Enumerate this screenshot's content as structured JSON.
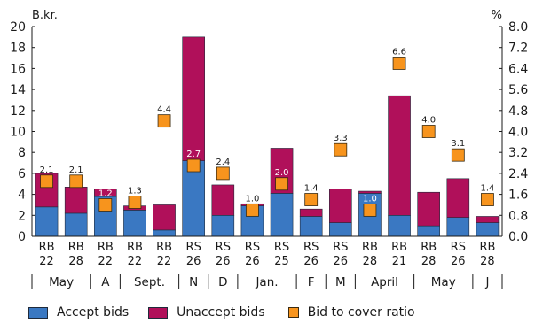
{
  "chart_data": {
    "type": "bar",
    "left_unit": "B.kr.",
    "right_unit": "%",
    "yticks_left": [
      "0",
      "2",
      "4",
      "6",
      "8",
      "10",
      "12",
      "14",
      "16",
      "18",
      "20"
    ],
    "yticks_right": [
      "0.0",
      "0.8",
      "1.6",
      "2.4",
      "3.2",
      "4.0",
      "4.8",
      "5.6",
      "6.4",
      "7.2",
      "8.0"
    ],
    "ylim": [
      0,
      20
    ],
    "y2lim": [
      0,
      8
    ],
    "categories": [
      [
        "RB",
        "22"
      ],
      [
        "RB",
        "28"
      ],
      [
        "RB",
        "22"
      ],
      [
        "RB",
        "22"
      ],
      [
        "RB",
        "22"
      ],
      [
        "RS",
        "26"
      ],
      [
        "RS",
        "26"
      ],
      [
        "RS",
        "26"
      ],
      [
        "RS",
        "25"
      ],
      [
        "RS",
        "26"
      ],
      [
        "RS",
        "26"
      ],
      [
        "RB",
        "28"
      ],
      [
        "RB",
        "21"
      ],
      [
        "RB",
        "28"
      ],
      [
        "RS",
        "26"
      ],
      [
        "RB",
        "28"
      ]
    ],
    "months": [
      {
        "label": "May",
        "start": 0,
        "end": 2
      },
      {
        "label": "A",
        "start": 2,
        "end": 3
      },
      {
        "label": "Sept.",
        "start": 3,
        "end": 5
      },
      {
        "label": "N",
        "start": 5,
        "end": 6
      },
      {
        "label": "D",
        "start": 6,
        "end": 7
      },
      {
        "label": "Jan.",
        "start": 7,
        "end": 9
      },
      {
        "label": "F",
        "start": 9,
        "end": 10
      },
      {
        "label": "M",
        "start": 10,
        "end": 11
      },
      {
        "label": "April",
        "start": 11,
        "end": 13
      },
      {
        "label": "May",
        "start": 13,
        "end": 15
      },
      {
        "label": "J",
        "start": 15,
        "end": 16
      }
    ],
    "series": [
      {
        "name": "Accept bids",
        "type": "bar",
        "stack": true,
        "values": [
          2.8,
          2.2,
          3.8,
          2.5,
          0.6,
          7.2,
          2.0,
          2.9,
          4.1,
          1.9,
          1.3,
          4.1,
          2.0,
          1.0,
          1.8,
          1.3
        ]
      },
      {
        "name": "Unaccept bids",
        "type": "bar",
        "stack": true,
        "values": [
          3.2,
          2.5,
          0.7,
          0.4,
          2.4,
          11.8,
          2.9,
          0.2,
          4.3,
          0.7,
          3.2,
          0.2,
          11.4,
          3.2,
          3.7,
          0.6
        ]
      },
      {
        "name": "Bid to cover ratio",
        "type": "marker",
        "axis": "right",
        "values": [
          2.1,
          2.1,
          1.2,
          1.3,
          4.4,
          2.7,
          2.4,
          1.0,
          2.0,
          1.4,
          3.3,
          1.0,
          6.6,
          4.0,
          3.1,
          1.4
        ],
        "labels": [
          "2.1",
          "2.1",
          "1.2",
          "1.3",
          "4.4",
          "2.7",
          "2.4",
          "1.0",
          "2.0",
          "1.4",
          "3.3",
          "1.0",
          "6.6",
          "4.0",
          "3.1",
          "1.4"
        ]
      }
    ],
    "colors": {
      "accept": "#3a78c2",
      "unaccept": "#b0105a",
      "ratio": "#f7941d",
      "ratio_stroke": "#3a2a10",
      "label_inside": "#ffffff",
      "label_outside": "#1a1a1a"
    },
    "legend": {
      "position": "bottom",
      "items": [
        "Accept bids",
        "Unaccept bids",
        "Bid to cover ratio"
      ]
    },
    "grid": false
  }
}
